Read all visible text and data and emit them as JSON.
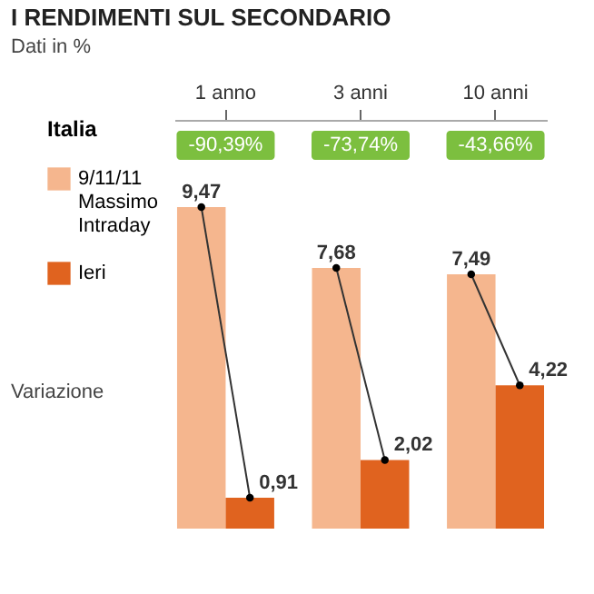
{
  "chart_data": {
    "type": "bar",
    "title": "I RENDIMENTI SUL SECONDARIO",
    "subtitle": "Dati in %",
    "legend_title": "Italia",
    "legend": "left",
    "categories": [
      "1 anno",
      "3 anni",
      "10 anni"
    ],
    "series": [
      {
        "name": "9/11/11 Massimo Intraday",
        "color": "#f5b68e",
        "values": [
          9.47,
          7.68,
          7.49
        ],
        "value_labels": [
          "9,47",
          "7,68",
          "7,49"
        ]
      },
      {
        "name": "Ieri",
        "color": "#e0631f",
        "values": [
          0.91,
          2.02,
          4.22
        ],
        "value_labels": [
          "0,91",
          "2,02",
          "4,22"
        ]
      }
    ],
    "annotations": [
      "-90,39%",
      "-73,74%",
      "-43,66%",
      "Variazione"
    ]
  }
}
